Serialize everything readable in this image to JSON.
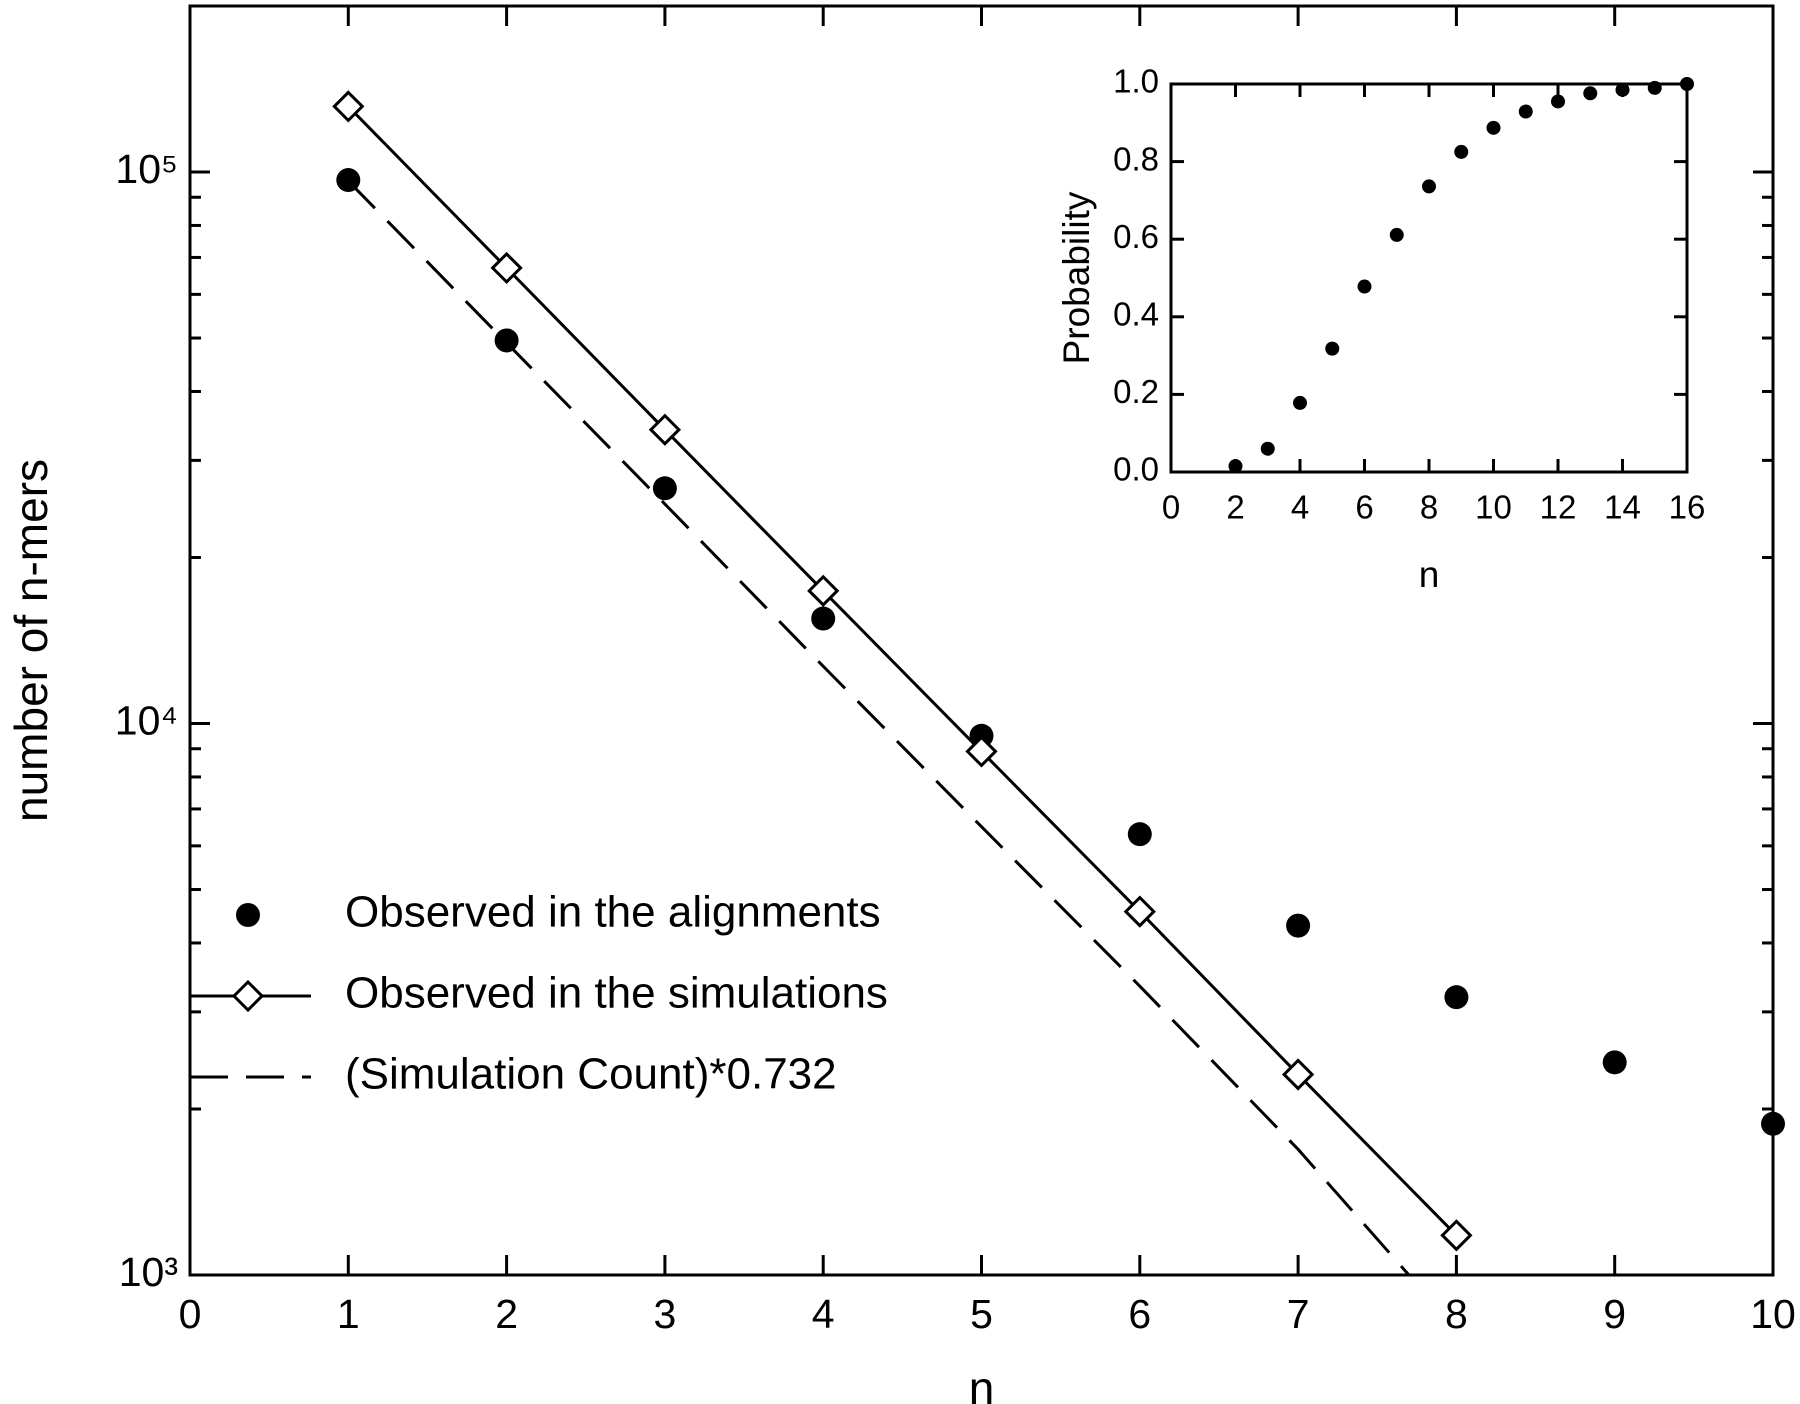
{
  "chart_data": [
    {
      "type": "line",
      "log_y": true,
      "xlabel": "n",
      "ylabel": "number of n-mers",
      "xlim": [
        0,
        10
      ],
      "xticks": [
        0,
        1,
        2,
        3,
        4,
        5,
        6,
        7,
        8,
        9,
        10
      ],
      "ylim": [
        1000,
        200000
      ],
      "yticks": [
        {
          "value": 1000,
          "label": "10³"
        },
        {
          "value": 10000,
          "label": "10⁴"
        },
        {
          "value": 100000,
          "label": "10⁵"
        }
      ],
      "y_minor_ticks": [
        2000,
        3000,
        4000,
        5000,
        6000,
        7000,
        8000,
        9000,
        20000,
        30000,
        40000,
        50000,
        60000,
        70000,
        80000,
        90000,
        200000
      ],
      "legend": "lower left",
      "series": [
        {
          "name": "Observed in the alignments",
          "color": "#000000",
          "marker": "dot",
          "line": "none",
          "x": [
            1,
            2,
            3,
            4,
            5,
            6,
            7,
            8,
            9,
            10
          ],
          "values": [
            96700,
            49500,
            26700,
            15500,
            9500,
            6300,
            4300,
            3190,
            2430,
            1880
          ]
        },
        {
          "name": "Observed in the simulations",
          "color": "#000000",
          "marker": "diamond",
          "line": "solid",
          "x": [
            1,
            2,
            3,
            4,
            5,
            6,
            7,
            8
          ],
          "values": [
            131500,
            67000,
            34100,
            17400,
            8900,
            4560,
            2310,
            1180
          ]
        },
        {
          "name": "(Simulation Count)*0.732",
          "color": "#000000",
          "marker": "none",
          "line": "dashed",
          "x": [
            1,
            2,
            3,
            4,
            5,
            6,
            7,
            7.7
          ],
          "values": [
            96300,
            49000,
            25000,
            12700,
            6500,
            3340,
            1690,
            1000
          ]
        }
      ]
    },
    {
      "type": "scatter",
      "xlabel": "n",
      "ylabel": "Probability",
      "xlim": [
        0,
        16
      ],
      "xticks": [
        0,
        2,
        4,
        6,
        8,
        10,
        12,
        14,
        16
      ],
      "ylim": [
        0,
        1
      ],
      "yticks": [
        {
          "value": 0,
          "label": "0.0"
        },
        0.2,
        0.4,
        0.6,
        0.8,
        {
          "value": 1,
          "label": "1.0"
        }
      ],
      "color": "#000000",
      "x": [
        2,
        3,
        4,
        5,
        6,
        7,
        8,
        9,
        10,
        11,
        12,
        13,
        14,
        15,
        16
      ],
      "values": [
        0.015,
        0.06,
        0.178,
        0.318,
        0.478,
        0.611,
        0.736,
        0.825,
        0.887,
        0.929,
        0.955,
        0.976,
        0.985,
        0.99,
        1.0
      ]
    }
  ]
}
